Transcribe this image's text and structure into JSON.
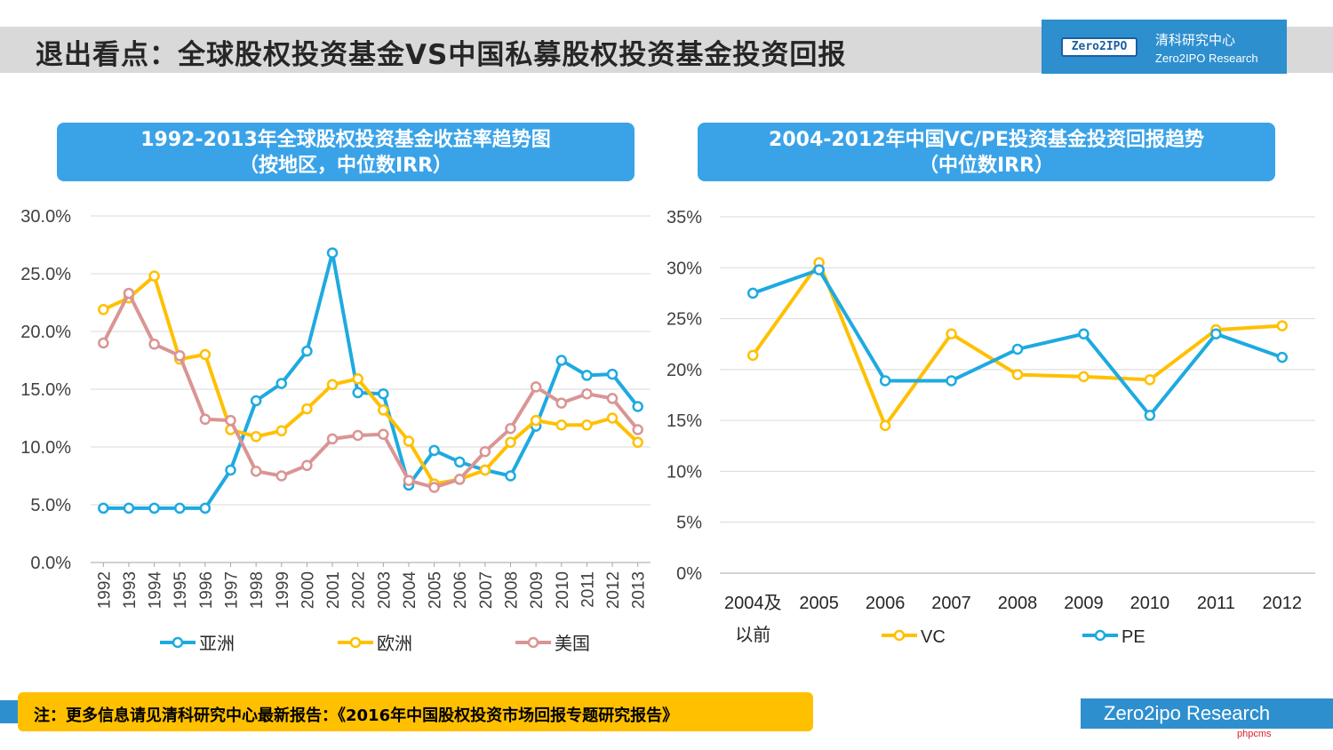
{
  "header": {
    "title": "退出看点：全球股权投资基金VS中国私募股权投资基金投资回报",
    "logo_mark": "Zero2IPO",
    "logo_cn": "清科研究中心",
    "logo_en": "Zero2IPO Research"
  },
  "note": "注：更多信息请见清科研究中心最新报告：《2016年中国股权投资市场回报专题研究报告》",
  "footer": "Zero2ipo Research",
  "watermark": "phpcms",
  "colors": {
    "asia": "#1eaae0",
    "europe": "#ffc000",
    "us": "#d99594",
    "vc": "#ffc000",
    "pe": "#1eaae0",
    "accent": "#2e8fcf"
  },
  "chart_data": [
    {
      "type": "line",
      "title": "1992-2013年全球股权投资基金收益率趋势图",
      "subtitle": "（按地区，中位数IRR）",
      "categories": [
        "1992",
        "1993",
        "1994",
        "1995",
        "1996",
        "1997",
        "1998",
        "1999",
        "2000",
        "2001",
        "2002",
        "2003",
        "2004",
        "2005",
        "2006",
        "2007",
        "2008",
        "2009",
        "2010",
        "2011",
        "2012",
        "2013"
      ],
      "y_ticks": [
        "0.0%",
        "5.0%",
        "10.0%",
        "15.0%",
        "20.0%",
        "25.0%",
        "30.0%"
      ],
      "ylim": [
        0,
        30
      ],
      "grid": true,
      "legend_position": "bottom",
      "series": [
        {
          "name": "亚洲",
          "color": "#1eaae0",
          "values": [
            4.7,
            4.7,
            4.7,
            4.7,
            4.7,
            8.0,
            14.0,
            15.5,
            18.3,
            26.8,
            14.7,
            14.6,
            6.7,
            9.7,
            8.7,
            8.0,
            7.5,
            11.8,
            17.5,
            16.2,
            16.3,
            13.5
          ]
        },
        {
          "name": "欧洲",
          "color": "#ffc000",
          "values": [
            21.9,
            22.9,
            24.8,
            17.6,
            18.0,
            11.5,
            10.9,
            11.4,
            13.3,
            15.4,
            15.9,
            13.2,
            10.5,
            6.8,
            7.2,
            8.0,
            10.4,
            12.3,
            11.9,
            11.9,
            12.5,
            10.4
          ]
        },
        {
          "name": "美国",
          "color": "#d99594",
          "values": [
            19.0,
            23.3,
            18.9,
            17.9,
            12.4,
            12.3,
            7.9,
            7.5,
            8.4,
            10.7,
            11.0,
            11.1,
            7.1,
            6.5,
            7.2,
            9.6,
            11.6,
            15.2,
            13.8,
            14.6,
            14.2,
            11.5
          ]
        }
      ]
    },
    {
      "type": "line",
      "title": "2004-2012年中国VC/PE投资基金投资回报趋势",
      "subtitle": "（中位数IRR）",
      "categories": [
        "2004及以前",
        "2005",
        "2006",
        "2007",
        "2008",
        "2009",
        "2010",
        "2011",
        "2012"
      ],
      "category_lines": [
        [
          "2004及",
          "以前"
        ],
        [
          "2005"
        ],
        [
          "2006"
        ],
        [
          "2007"
        ],
        [
          "2008"
        ],
        [
          "2009"
        ],
        [
          "2010"
        ],
        [
          "2011"
        ],
        [
          "2012"
        ]
      ],
      "y_ticks": [
        "0%",
        "5%",
        "10%",
        "15%",
        "20%",
        "25%",
        "30%",
        "35%"
      ],
      "ylim": [
        0,
        35
      ],
      "grid": true,
      "legend_position": "bottom",
      "series": [
        {
          "name": "VC",
          "color": "#ffc000",
          "values": [
            21.4,
            30.5,
            14.5,
            23.5,
            19.5,
            19.3,
            19.0,
            23.9,
            24.3
          ]
        },
        {
          "name": "PE",
          "color": "#1eaae0",
          "values": [
            27.5,
            29.8,
            18.9,
            18.9,
            22.0,
            23.5,
            15.5,
            23.5,
            21.2
          ]
        }
      ]
    }
  ]
}
